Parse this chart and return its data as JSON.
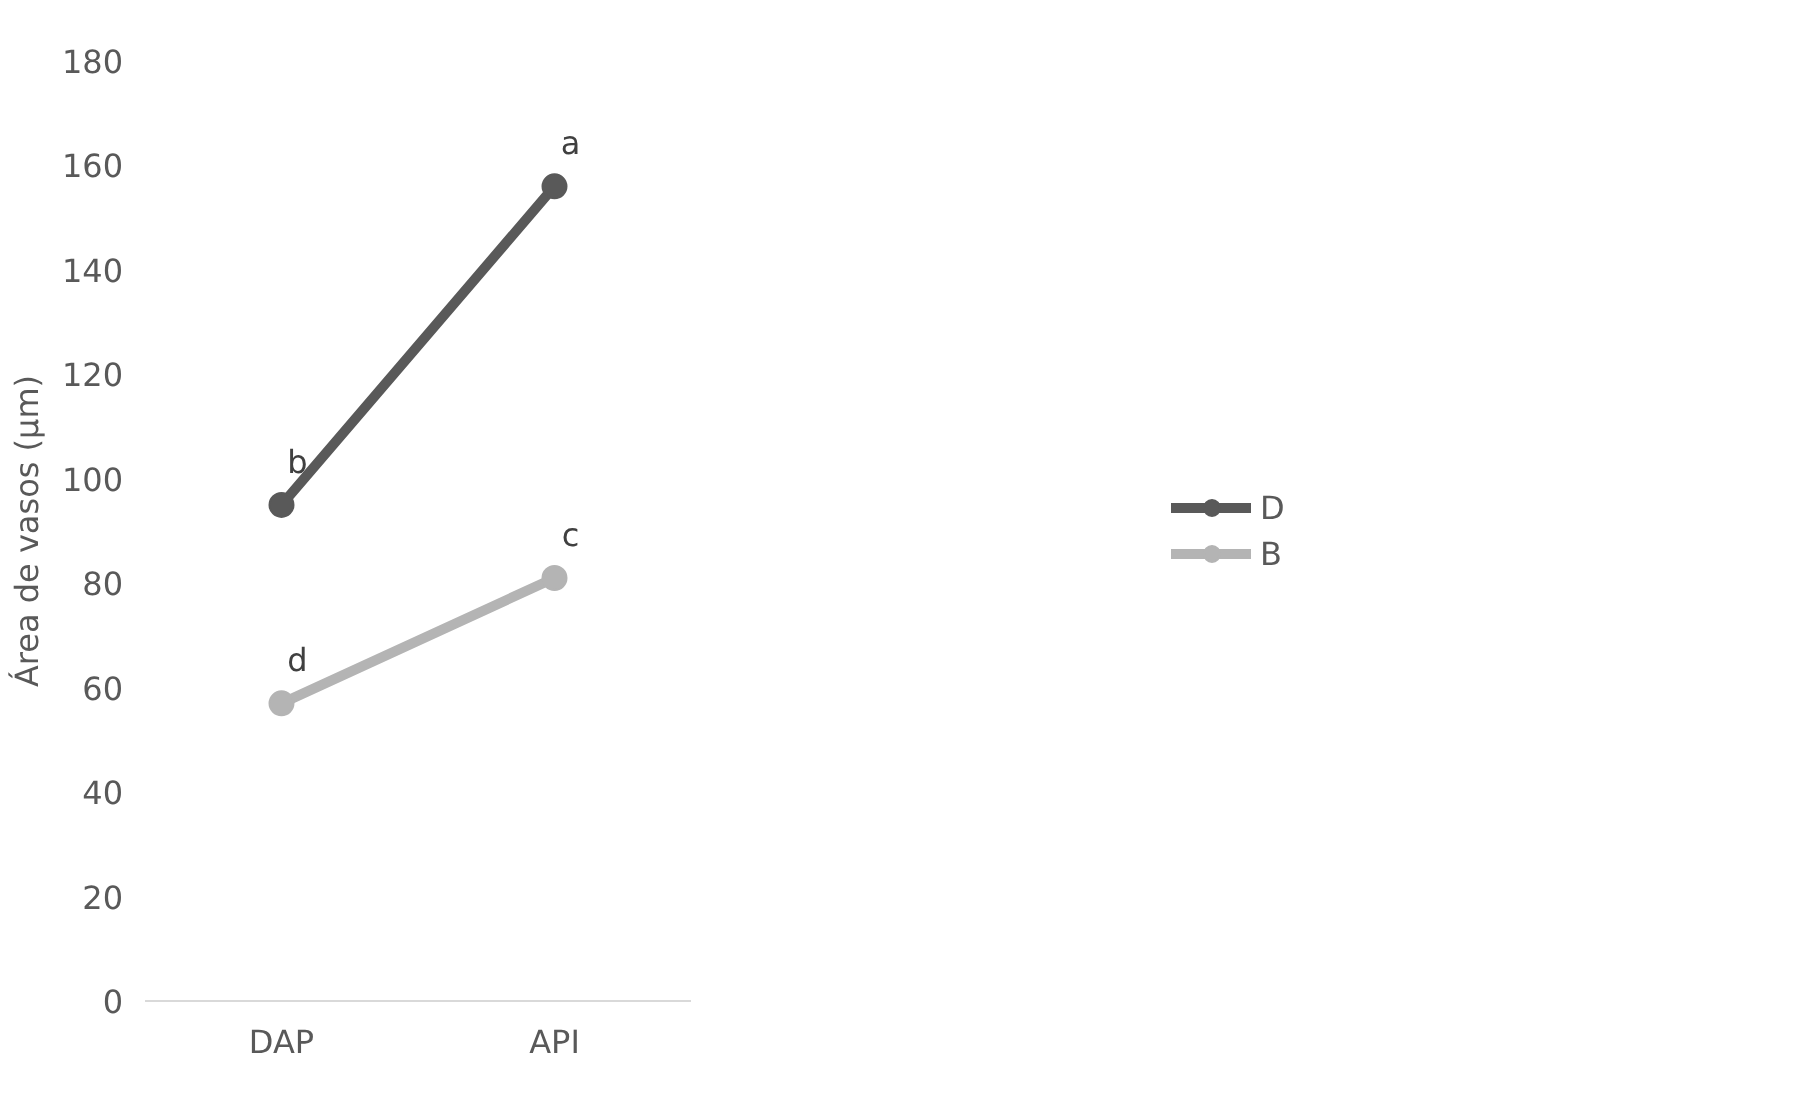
{
  "chart_data": {
    "type": "line",
    "ylabel": "Área de vasos (µm)",
    "categories": [
      "DAP",
      "API"
    ],
    "series": [
      {
        "name": "D",
        "color": "#595959",
        "values": [
          95,
          156
        ]
      },
      {
        "name": "B",
        "color": "#b4b4b4",
        "values": [
          57,
          81
        ]
      }
    ],
    "ylim": [
      0,
      180
    ],
    "yticks": [
      0,
      20,
      40,
      60,
      80,
      100,
      120,
      140,
      160,
      180
    ],
    "grid": false,
    "legend": "right",
    "marker": "circle",
    "line_style": "solid",
    "annotations": [
      {
        "text": "b",
        "x": "DAP",
        "y": 95
      },
      {
        "text": "a",
        "x": "API",
        "y": 156
      },
      {
        "text": "d",
        "x": "DAP",
        "y": 57
      },
      {
        "text": "c",
        "x": "API",
        "y": 81
      }
    ]
  }
}
